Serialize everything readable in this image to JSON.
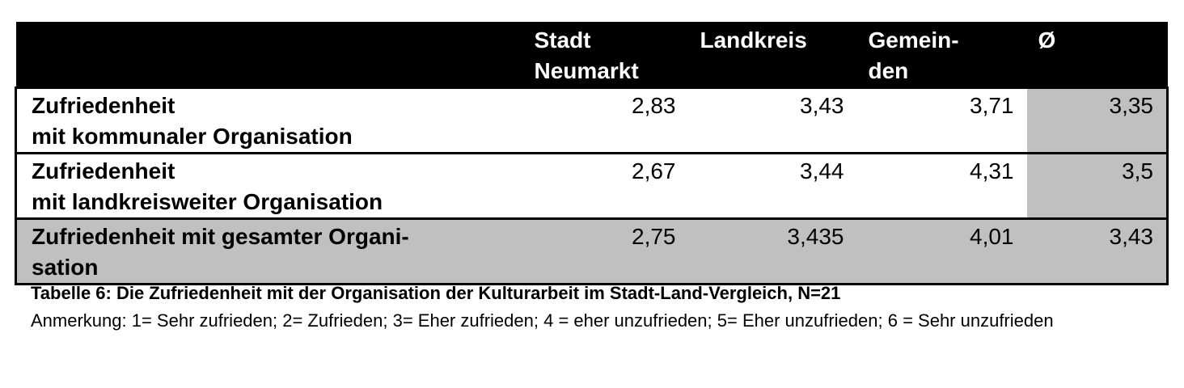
{
  "table": {
    "header": [
      "",
      "Stadt\nNeumarkt",
      "Landkreis",
      "Gemein-\nden",
      "Ø"
    ],
    "rows": [
      [
        "Zufriedenheit\nmit kommunaler Organisation",
        "2,83",
        "3,43",
        "3,71",
        "3,35"
      ],
      [
        "Zufriedenheit\nmit landkreisweiter Organisation",
        "2,67",
        "3,44",
        "4,31",
        "3,5"
      ],
      [
        "Zufriedenheit mit gesamter Organi-\nsation",
        "2,75",
        "3,435",
        "4,01",
        "3,43"
      ]
    ]
  },
  "caption": {
    "title": "Tabelle 6: Die Zufriedenheit mit der Organisation der Kulturarbeit im Stadt-Land-Vergleich, N=21",
    "note": "Anmerkung: 1= Sehr zufrieden; 2= Zufrieden; 3= Eher zufrieden; 4 = eher unzufrieden; 5= Eher unzufrieden; 6 = Sehr unzufrieden"
  }
}
